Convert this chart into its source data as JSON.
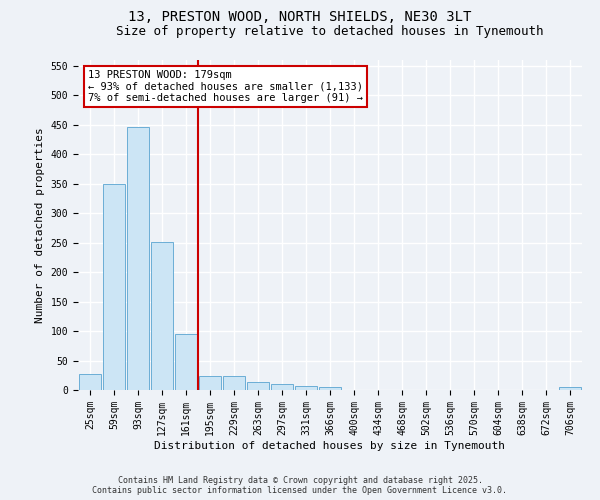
{
  "title": "13, PRESTON WOOD, NORTH SHIELDS, NE30 3LT",
  "subtitle": "Size of property relative to detached houses in Tynemouth",
  "xlabel": "Distribution of detached houses by size in Tynemouth",
  "ylabel": "Number of detached properties",
  "categories": [
    "25sqm",
    "59sqm",
    "93sqm",
    "127sqm",
    "161sqm",
    "195sqm",
    "229sqm",
    "263sqm",
    "297sqm",
    "331sqm",
    "366sqm",
    "400sqm",
    "434sqm",
    "468sqm",
    "502sqm",
    "536sqm",
    "570sqm",
    "604sqm",
    "638sqm",
    "672sqm",
    "706sqm"
  ],
  "values": [
    27,
    350,
    447,
    251,
    95,
    24,
    24,
    13,
    11,
    7,
    5,
    0,
    0,
    0,
    0,
    0,
    0,
    0,
    0,
    0,
    5
  ],
  "bar_color": "#cce5f5",
  "bar_edge_color": "#6baed6",
  "ylim": [
    0,
    560
  ],
  "yticks": [
    0,
    50,
    100,
    150,
    200,
    250,
    300,
    350,
    400,
    450,
    500,
    550
  ],
  "vline_x": 4.5,
  "annotation_text": "13 PRESTON WOOD: 179sqm\n← 93% of detached houses are smaller (1,133)\n7% of semi-detached houses are larger (91) →",
  "annotation_box_color": "#ffffff",
  "annotation_border_color": "#cc0000",
  "footer_line1": "Contains HM Land Registry data © Crown copyright and database right 2025.",
  "footer_line2": "Contains public sector information licensed under the Open Government Licence v3.0.",
  "bg_color": "#eef2f7",
  "grid_color": "#ffffff",
  "title_fontsize": 10,
  "subtitle_fontsize": 9,
  "tick_fontsize": 7,
  "ylabel_fontsize": 8,
  "xlabel_fontsize": 8,
  "footer_fontsize": 6
}
